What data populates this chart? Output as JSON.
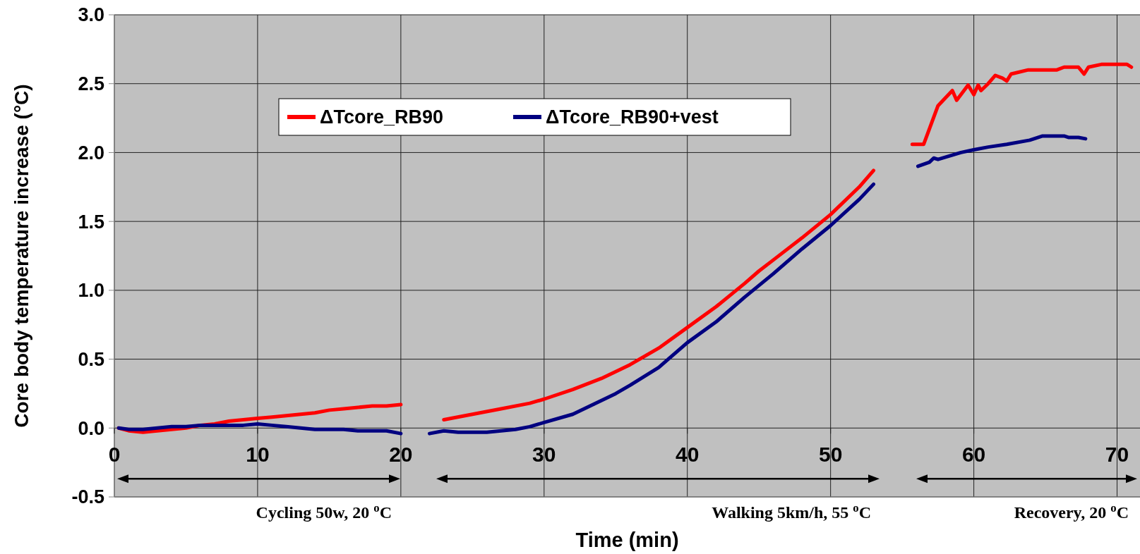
{
  "chart_data": {
    "type": "line",
    "xlabel": "Time (min)",
    "ylabel": "Core body temperature increase (°C)",
    "xlim": [
      0,
      71.6
    ],
    "ylim": [
      -0.5,
      3
    ],
    "xticks": [
      0,
      10,
      20,
      30,
      40,
      50,
      60,
      70
    ],
    "yticks": [
      {
        "value": -0.5,
        "label": "-0.5"
      },
      {
        "value": 0,
        "label": "0.0"
      },
      {
        "value": 0.5,
        "label": "0.5"
      },
      {
        "value": 1,
        "label": "1.0"
      },
      {
        "value": 1.5,
        "label": "1.5"
      },
      {
        "value": 2,
        "label": "2.0"
      },
      {
        "value": 2.5,
        "label": "2.5"
      },
      {
        "value": 3,
        "label": "3.0"
      }
    ],
    "grid": true,
    "legend": "top",
    "line_style": "solid",
    "marker": "none",
    "annotations": [
      "Cycling 50w, 20 $^{o}$C",
      "Walking 5km/h, 55 $^{o}$C",
      "Recovery, 20 $^{o}$C"
    ],
    "series": [
      {
        "name": "ΔTcore_RB90",
        "color": "#ff0000",
        "x": [
          0.3,
          1,
          2,
          3,
          4,
          5,
          6,
          7,
          8,
          9,
          10,
          11,
          12,
          13,
          14,
          15,
          16,
          17,
          18,
          19,
          20,
          21.5,
          23,
          25,
          27,
          29,
          30,
          32,
          34,
          35,
          36,
          38,
          40,
          42,
          44,
          45,
          46,
          48,
          50,
          52,
          53,
          54.5,
          55.7,
          56.5,
          57.5,
          58.5,
          58.8,
          59.6,
          60,
          60.3,
          60.5,
          61,
          61.5,
          62,
          62.3,
          62.6,
          63.8,
          65.8,
          66.3,
          67.3,
          67.7,
          68,
          68.9,
          70.7,
          71
        ],
        "values": [
          0,
          -0.02,
          -0.03,
          -0.02,
          -0.01,
          0,
          0.02,
          0.03,
          0.05,
          0.06,
          0.07,
          0.08,
          0.09,
          0.1,
          0.11,
          0.13,
          0.14,
          0.15,
          0.16,
          0.16,
          0.17,
          null,
          0.06,
          0.1,
          0.14,
          0.18,
          0.21,
          0.28,
          0.36,
          0.41,
          0.46,
          0.58,
          0.73,
          0.88,
          1.05,
          1.14,
          1.22,
          1.38,
          1.55,
          1.75,
          1.87,
          null,
          2.06,
          2.06,
          2.34,
          2.45,
          2.38,
          2.49,
          2.42,
          2.49,
          2.45,
          2.5,
          2.56,
          2.54,
          2.52,
          2.57,
          2.6,
          2.6,
          2.62,
          2.62,
          2.57,
          2.62,
          2.64,
          2.64,
          2.62
        ]
      },
      {
        "name": "ΔTcore_RB90+vest",
        "color": "#000080",
        "x": [
          0.3,
          1,
          2,
          3,
          4,
          5,
          6,
          7,
          8,
          9,
          10,
          11,
          12,
          13,
          14,
          15,
          16,
          17,
          18,
          19,
          20,
          21,
          22,
          23,
          24,
          26,
          28,
          29,
          30,
          32,
          33,
          35,
          36,
          38,
          40,
          42,
          44,
          46,
          48,
          50,
          52,
          53,
          54.5,
          56.1,
          56.9,
          57.2,
          57.5,
          59.1,
          60,
          61,
          62.3,
          63.9,
          64.8,
          66.3,
          66.6,
          67.3,
          67.8
        ],
        "values": [
          0,
          -0.01,
          -0.01,
          0,
          0.01,
          0.01,
          0.02,
          0.02,
          0.02,
          0.02,
          0.03,
          0.02,
          0.01,
          0,
          -0.01,
          -0.01,
          -0.01,
          -0.02,
          -0.02,
          -0.02,
          -0.04,
          null,
          -0.04,
          -0.02,
          -0.03,
          -0.03,
          -0.01,
          0.01,
          0.04,
          0.1,
          0.15,
          0.25,
          0.31,
          0.44,
          0.62,
          0.77,
          0.95,
          1.12,
          1.3,
          1.47,
          1.66,
          1.77,
          null,
          1.9,
          1.93,
          1.96,
          1.95,
          2,
          2.02,
          2.04,
          2.06,
          2.09,
          2.12,
          2.12,
          2.11,
          2.11,
          2.1
        ]
      }
    ]
  }
}
